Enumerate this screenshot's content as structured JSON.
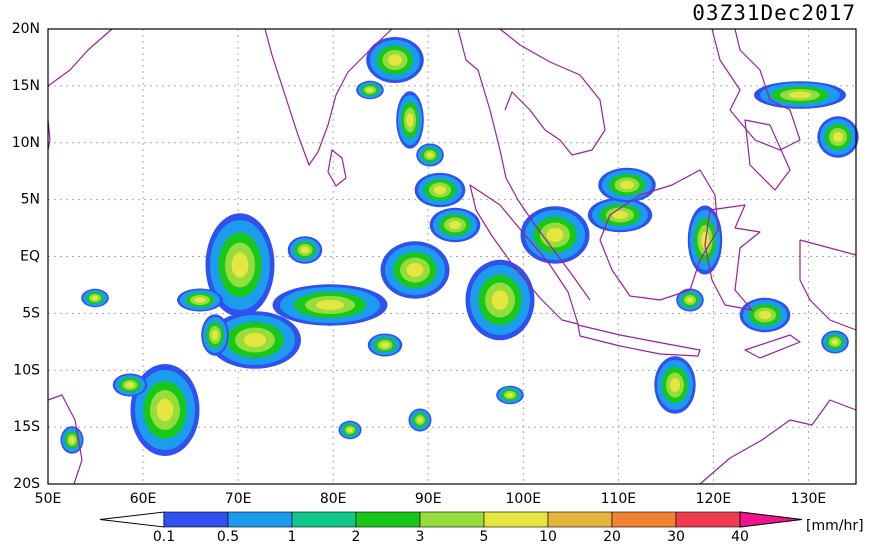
{
  "header": {
    "title": "03Z31Dec2017"
  },
  "map": {
    "lat_labels": [
      "20N",
      "15N",
      "10N",
      "5N",
      "EQ",
      "5S",
      "10S",
      "15S",
      "20S"
    ],
    "lon_labels": [
      "50E",
      "60E",
      "70E",
      "80E",
      "90E",
      "100E",
      "110E",
      "120E",
      "130E"
    ]
  },
  "colorbar": {
    "labels": [
      "0.1",
      "0.5",
      "1",
      "2",
      "3",
      "5",
      "10",
      "20",
      "30",
      "40"
    ],
    "colors": [
      "#ffffff",
      "#3050f0",
      "#1c9cef",
      "#10c88c",
      "#18c818",
      "#96dc3c",
      "#e6e640",
      "#e6b43c",
      "#f08232",
      "#f03c50",
      "#f0148c"
    ],
    "unit": "[mm/hr]"
  }
}
